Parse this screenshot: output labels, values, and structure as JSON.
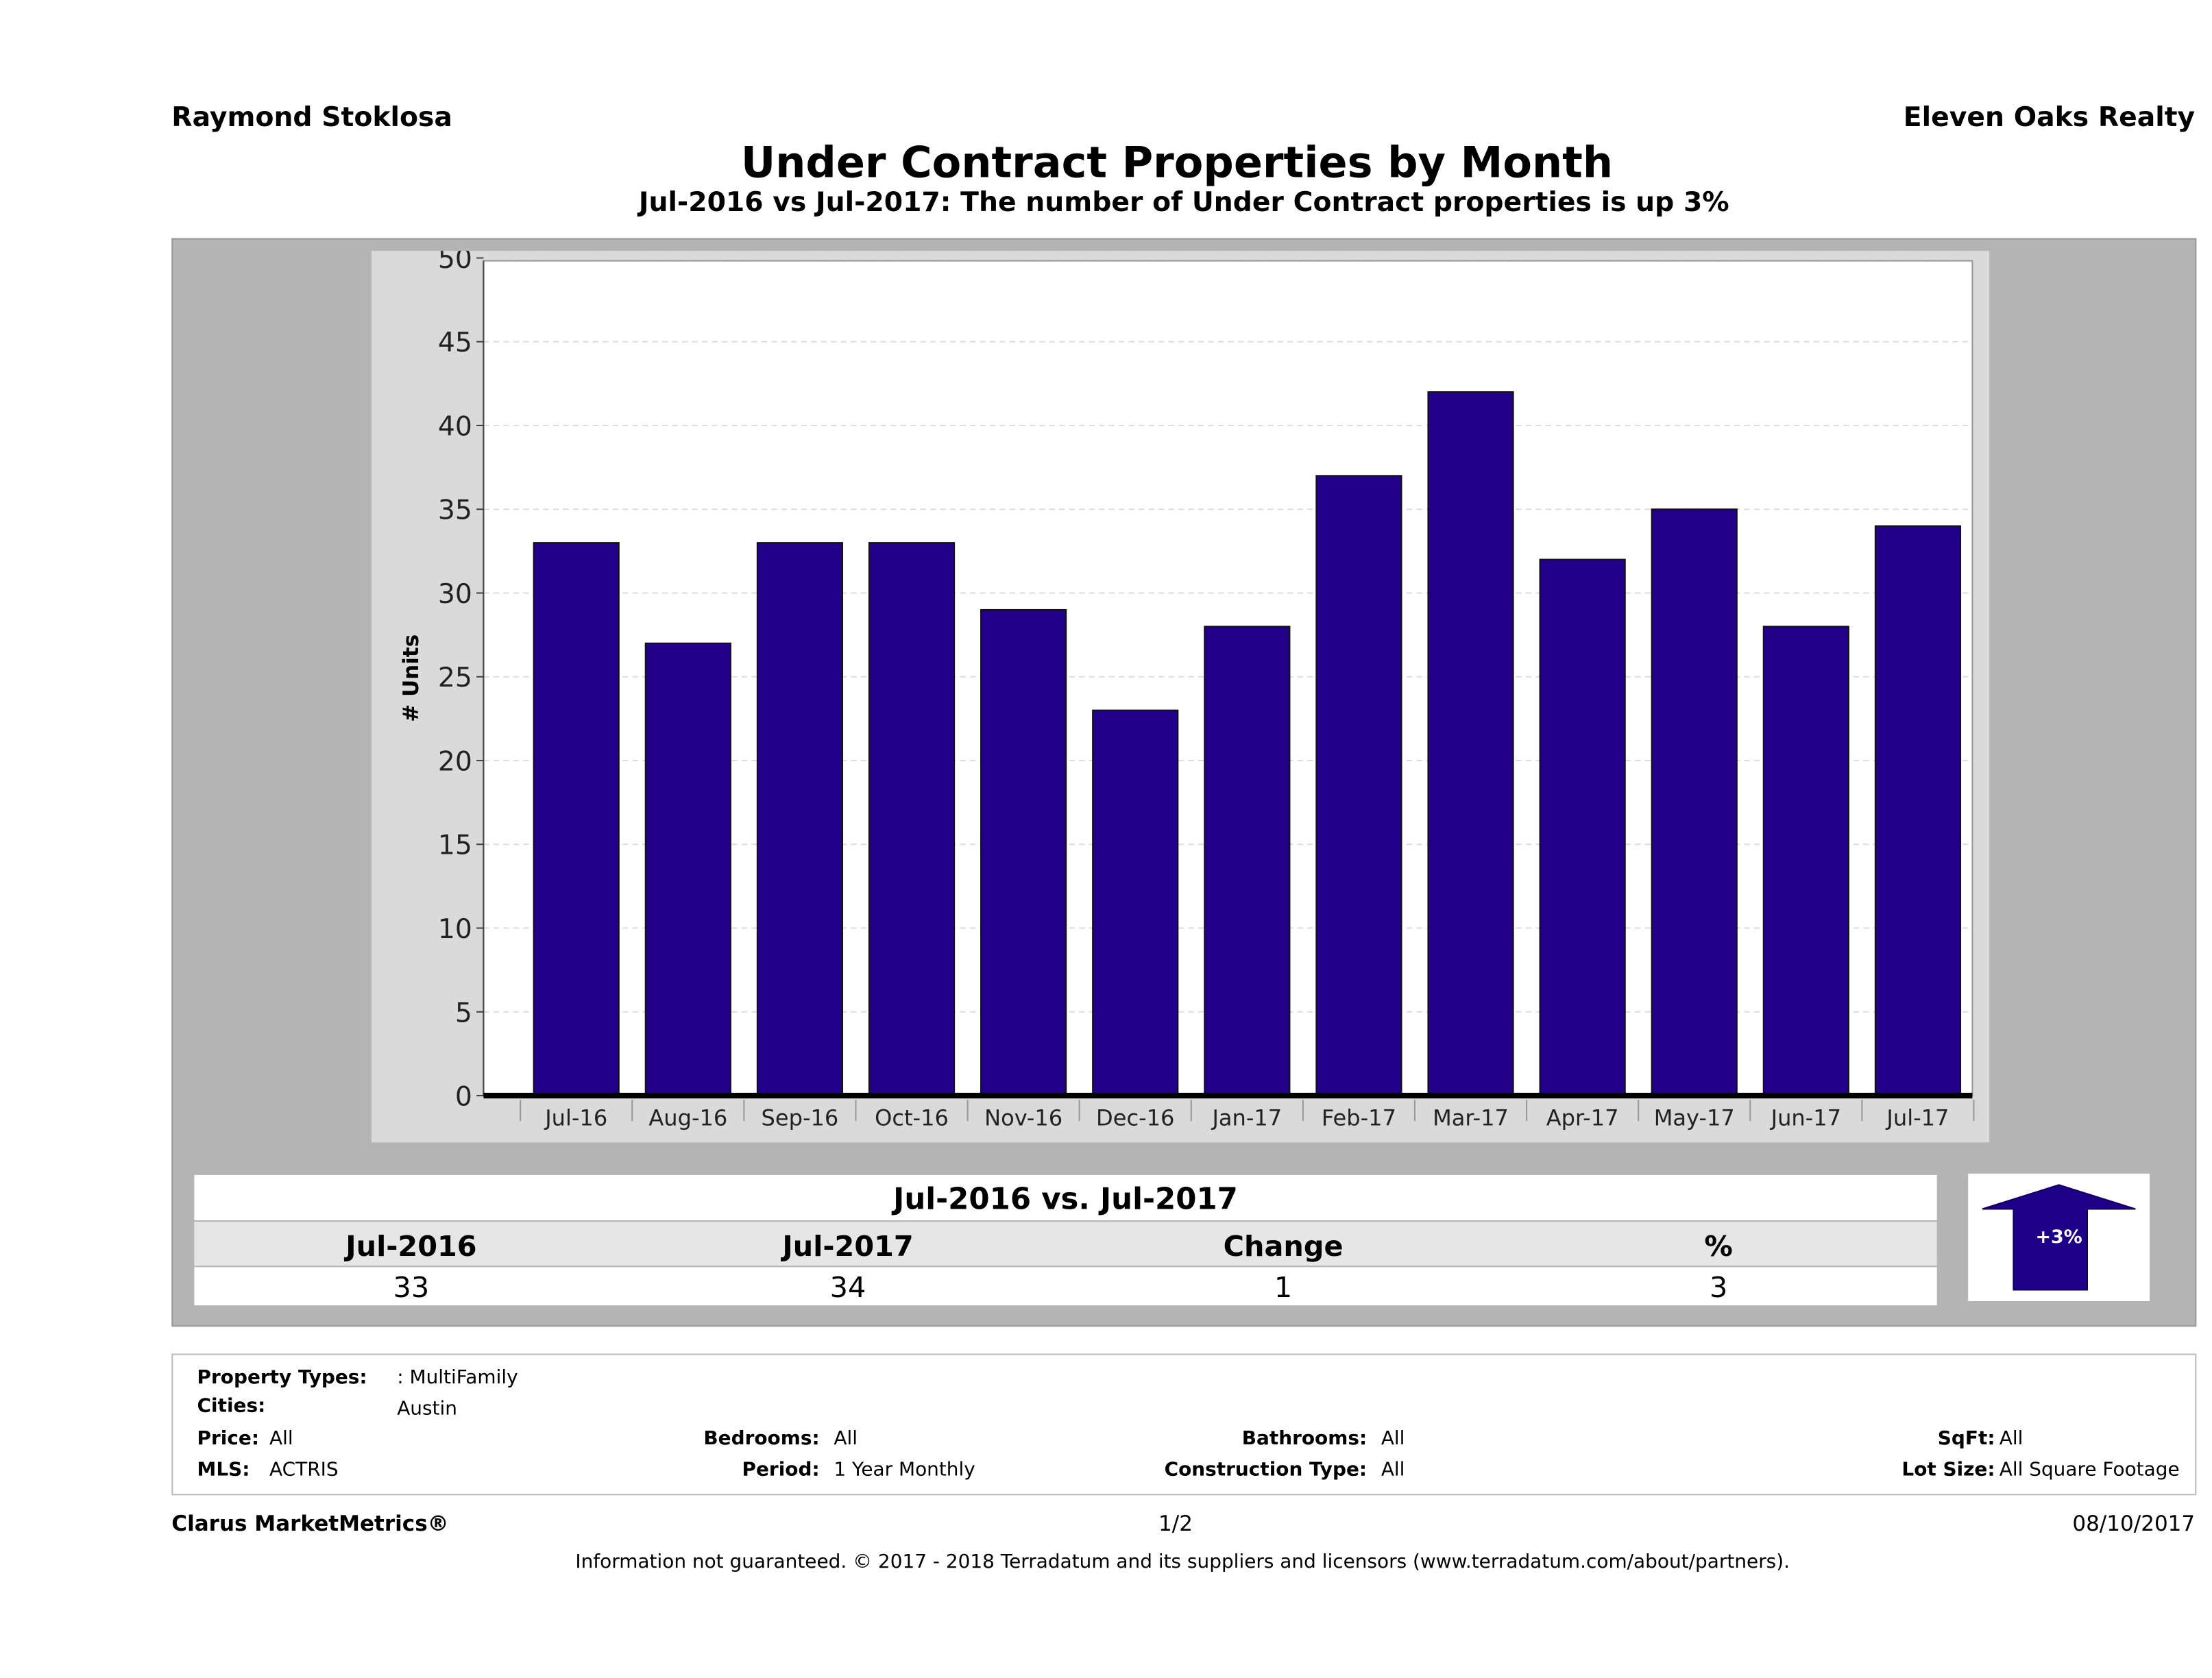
{
  "header": {
    "agent": "Raymond Stoklosa",
    "brokerage": "Eleven Oaks Realty"
  },
  "chart_data": {
    "type": "bar",
    "title": "Under Contract Properties by Month",
    "subtitle": "Jul-2016 vs Jul-2017: The number of Under Contract  properties is up 3%",
    "xlabel": "",
    "ylabel": "# Units",
    "ylim": [
      0,
      50
    ],
    "yticks": [
      0,
      5,
      10,
      15,
      20,
      25,
      30,
      35,
      40,
      45,
      50
    ],
    "grid": true,
    "categories": [
      "Jul-16",
      "Aug-16",
      "Sep-16",
      "Oct-16",
      "Nov-16",
      "Dec-16",
      "Jan-17",
      "Feb-17",
      "Mar-17",
      "Apr-17",
      "May-17",
      "Jun-17",
      "Jul-17"
    ],
    "values": [
      33,
      27,
      33,
      33,
      29,
      23,
      28,
      37,
      42,
      32,
      35,
      28,
      34
    ],
    "bar_color": "#22008a"
  },
  "comparison": {
    "title": "Jul-2016 vs. Jul-2017",
    "headers": [
      "Jul-2016",
      "Jul-2017",
      "Change",
      "%"
    ],
    "values": [
      "33",
      "34",
      "1",
      "3"
    ],
    "badge": "+3%"
  },
  "filters": {
    "property_types_label": "Property Types:",
    "property_types": ": MultiFamily",
    "cities_label": "Cities:",
    "cities": "Austin",
    "price_label": "Price:",
    "price": "All",
    "mls_label": "MLS:",
    "mls": "ACTRIS",
    "bedrooms_label": "Bedrooms:",
    "bedrooms": "All",
    "period_label": "Period:",
    "period": "1 Year Monthly",
    "bathrooms_label": "Bathrooms:",
    "bathrooms": "All",
    "construction_label": "Construction Type:",
    "construction": "All",
    "sqft_label": "SqFt:",
    "sqft": "All",
    "lot_label": "Lot Size:",
    "lot": "All Square Footage"
  },
  "footer": {
    "brand": "Clarus MarketMetrics®",
    "page": "1/2",
    "date": "08/10/2017",
    "disclaimer": "Information not guaranteed. © 2017 - 2018 Terradatum and its suppliers and licensors (www.terradatum.com/about/partners)."
  }
}
